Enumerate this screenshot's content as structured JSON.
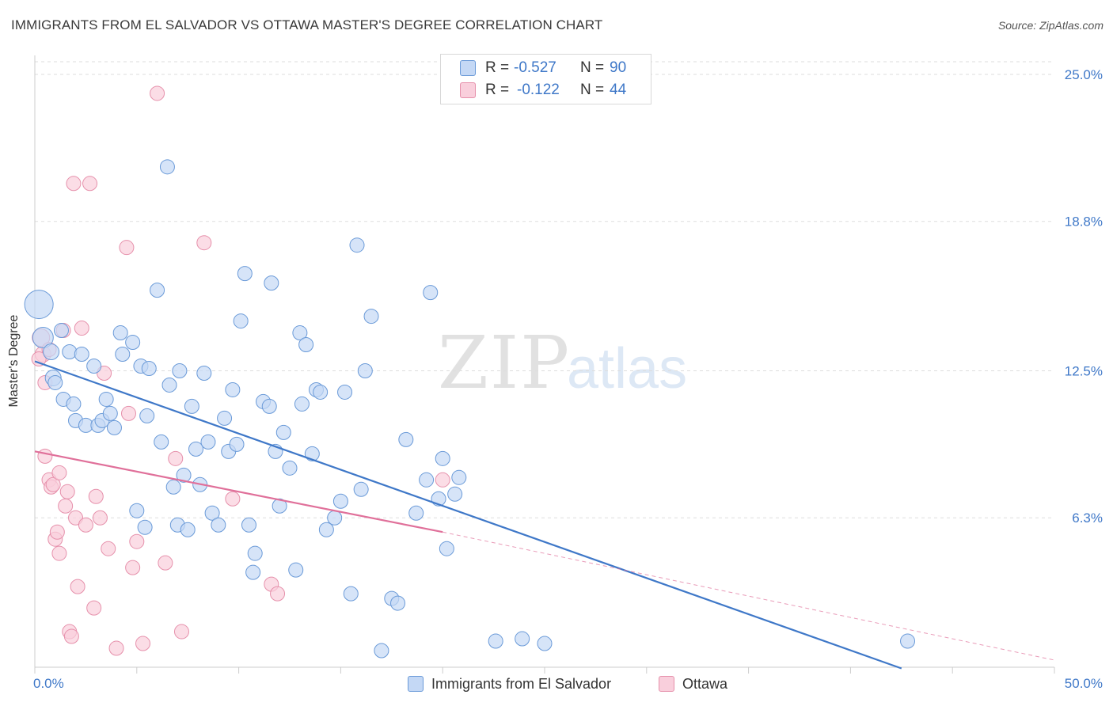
{
  "title": "IMMIGRANTS FROM EL SALVADOR VS OTTAWA MASTER'S DEGREE CORRELATION CHART",
  "source": "Source: ZipAtlas.com",
  "watermark": {
    "zip": "ZIP",
    "atlas": "atlas"
  },
  "legend": {
    "rows": [
      {
        "r_label": "R =",
        "r_value": "-0.527",
        "n_label": "N =",
        "n_value": "90"
      },
      {
        "r_label": "R =",
        "r_value": "-0.122",
        "n_label": "N =",
        "n_value": "44"
      }
    ]
  },
  "bottom_legend": [
    "Immigrants from El Salvador",
    "Ottawa"
  ],
  "colors": {
    "blue": "#3f78c8",
    "blue_fill": "#c4d8f5",
    "pink": "#e0709a",
    "pink_fill": "#f9cfdc",
    "grid": "#dddddd",
    "tick_label": "#3f78c8"
  },
  "chart_data": {
    "type": "scatter",
    "title": "IMMIGRANTS FROM EL SALVADOR VS OTTAWA MASTER'S DEGREE CORRELATION CHART",
    "xlabel": "",
    "ylabel": "Master's Degree",
    "xlim": [
      0,
      50
    ],
    "ylim": [
      0,
      25.8
    ],
    "x_tick_labels": [
      "0.0%",
      "50.0%"
    ],
    "y_ticks": [
      6.3,
      12.5,
      18.8,
      25.0
    ],
    "y_tick_labels": [
      "6.3%",
      "12.5%",
      "18.8%",
      "25.0%"
    ],
    "grid": true,
    "legend_position": "top-center",
    "series": [
      {
        "name": "Immigrants from El Salvador",
        "color": "#3f78c8",
        "trend": {
          "x": [
            0.0,
            42.5
          ],
          "y": [
            12.9,
            -0.05
          ],
          "dashed_to": null
        },
        "points": [
          [
            0.2,
            15.3,
            18
          ],
          [
            0.4,
            13.9,
            13
          ],
          [
            0.8,
            13.3,
            10
          ],
          [
            0.9,
            12.2,
            10
          ],
          [
            1.0,
            12.0,
            9
          ],
          [
            1.3,
            14.2,
            9
          ],
          [
            1.4,
            11.3,
            9
          ],
          [
            1.7,
            13.3,
            9
          ],
          [
            1.9,
            11.1,
            9
          ],
          [
            2.0,
            10.4,
            9
          ],
          [
            2.3,
            13.2,
            9
          ],
          [
            2.5,
            10.2,
            9
          ],
          [
            2.9,
            12.7,
            9
          ],
          [
            3.1,
            10.2,
            9
          ],
          [
            3.3,
            10.4,
            9
          ],
          [
            3.5,
            11.3,
            9
          ],
          [
            3.7,
            10.7,
            9
          ],
          [
            3.9,
            10.1,
            9
          ],
          [
            4.2,
            14.1,
            9
          ],
          [
            4.3,
            13.2,
            9
          ],
          [
            4.8,
            13.7,
            9
          ],
          [
            5.2,
            12.7,
            9
          ],
          [
            5.5,
            10.6,
            9
          ],
          [
            5.6,
            12.6,
            9
          ],
          [
            5.0,
            6.6,
            9
          ],
          [
            5.4,
            5.9,
            9
          ],
          [
            6.0,
            15.9,
            9
          ],
          [
            6.2,
            9.5,
            9
          ],
          [
            6.5,
            21.1,
            9
          ],
          [
            6.6,
            11.9,
            9
          ],
          [
            6.8,
            7.6,
            9
          ],
          [
            7.0,
            6.0,
            9
          ],
          [
            7.1,
            12.5,
            9
          ],
          [
            7.3,
            8.1,
            9
          ],
          [
            7.5,
            5.8,
            9
          ],
          [
            7.7,
            11.0,
            9
          ],
          [
            7.9,
            9.2,
            9
          ],
          [
            8.1,
            7.7,
            9
          ],
          [
            8.3,
            12.4,
            9
          ],
          [
            8.5,
            9.5,
            9
          ],
          [
            8.7,
            6.5,
            9
          ],
          [
            9.0,
            6.0,
            9
          ],
          [
            9.3,
            10.5,
            9
          ],
          [
            9.5,
            9.1,
            9
          ],
          [
            9.7,
            11.7,
            9
          ],
          [
            9.9,
            9.4,
            9
          ],
          [
            10.1,
            14.6,
            9
          ],
          [
            10.3,
            16.6,
            9
          ],
          [
            10.5,
            6.0,
            9
          ],
          [
            10.8,
            4.8,
            9
          ],
          [
            10.7,
            4.0,
            9
          ],
          [
            11.2,
            11.2,
            9
          ],
          [
            11.5,
            11.0,
            9
          ],
          [
            11.6,
            16.2,
            9
          ],
          [
            11.8,
            9.1,
            9
          ],
          [
            12.0,
            6.8,
            9
          ],
          [
            12.2,
            9.9,
            9
          ],
          [
            12.5,
            8.4,
            9
          ],
          [
            12.8,
            4.1,
            9
          ],
          [
            13.0,
            14.1,
            9
          ],
          [
            13.1,
            11.1,
            9
          ],
          [
            13.3,
            13.6,
            9
          ],
          [
            13.6,
            9.0,
            9
          ],
          [
            13.8,
            11.7,
            9
          ],
          [
            14.0,
            11.6,
            9
          ],
          [
            14.3,
            5.8,
            9
          ],
          [
            14.7,
            6.3,
            9
          ],
          [
            15.0,
            7.0,
            9
          ],
          [
            15.2,
            11.6,
            9
          ],
          [
            15.5,
            3.1,
            9
          ],
          [
            15.8,
            17.8,
            9
          ],
          [
            16.0,
            7.5,
            9
          ],
          [
            16.2,
            12.5,
            9
          ],
          [
            16.5,
            14.8,
            9
          ],
          [
            17.0,
            0.7,
            9
          ],
          [
            17.5,
            2.9,
            9
          ],
          [
            17.8,
            2.7,
            9
          ],
          [
            18.2,
            9.6,
            9
          ],
          [
            18.7,
            6.5,
            9
          ],
          [
            19.2,
            7.9,
            9
          ],
          [
            19.4,
            15.8,
            9
          ],
          [
            19.8,
            7.1,
            9
          ],
          [
            20.0,
            8.8,
            9
          ],
          [
            20.2,
            5.0,
            9
          ],
          [
            20.6,
            7.3,
            9
          ],
          [
            20.8,
            8.0,
            9
          ],
          [
            22.6,
            1.1,
            9
          ],
          [
            23.9,
            1.2,
            9
          ],
          [
            25.0,
            1.0,
            9
          ],
          [
            42.8,
            1.1,
            9
          ]
        ]
      },
      {
        "name": "Ottawa",
        "color": "#e0709a",
        "trend": {
          "x": [
            0.0,
            20.0
          ],
          "y": [
            9.1,
            5.7
          ],
          "dashed_to": [
            50.0,
            0.3
          ]
        },
        "points": [
          [
            0.3,
            13.9,
            11
          ],
          [
            0.4,
            13.2,
            10
          ],
          [
            0.5,
            12.0,
            9
          ],
          [
            0.5,
            8.9,
            9
          ],
          [
            0.7,
            13.4,
            9
          ],
          [
            0.7,
            7.9,
            9
          ],
          [
            0.8,
            7.6,
            9
          ],
          [
            0.9,
            7.7,
            9
          ],
          [
            1.0,
            5.4,
            9
          ],
          [
            1.1,
            5.7,
            9
          ],
          [
            1.2,
            4.8,
            9
          ],
          [
            1.2,
            8.2,
            9
          ],
          [
            1.4,
            14.2,
            9
          ],
          [
            1.5,
            6.8,
            9
          ],
          [
            1.6,
            7.4,
            9
          ],
          [
            1.7,
            1.5,
            9
          ],
          [
            1.8,
            1.3,
            9
          ],
          [
            1.9,
            20.4,
            9
          ],
          [
            2.0,
            6.3,
            9
          ],
          [
            2.1,
            3.4,
            9
          ],
          [
            2.3,
            14.3,
            9
          ],
          [
            2.5,
            6.0,
            9
          ],
          [
            2.7,
            20.4,
            9
          ],
          [
            2.9,
            2.5,
            9
          ],
          [
            3.0,
            7.2,
            9
          ],
          [
            3.2,
            6.3,
            9
          ],
          [
            3.4,
            12.4,
            9
          ],
          [
            3.6,
            5.0,
            9
          ],
          [
            4.0,
            0.8,
            9
          ],
          [
            4.5,
            17.7,
            9
          ],
          [
            4.6,
            10.7,
            9
          ],
          [
            4.8,
            4.2,
            9
          ],
          [
            5.0,
            5.3,
            9
          ],
          [
            5.3,
            1.0,
            9
          ],
          [
            6.0,
            24.2,
            9
          ],
          [
            6.4,
            4.4,
            9
          ],
          [
            6.9,
            8.8,
            9
          ],
          [
            7.2,
            1.5,
            9
          ],
          [
            8.3,
            17.9,
            9
          ],
          [
            9.7,
            7.1,
            9
          ],
          [
            11.6,
            3.5,
            9
          ],
          [
            11.9,
            3.1,
            9
          ],
          [
            20.0,
            7.9,
            9
          ],
          [
            0.2,
            13.0,
            9
          ]
        ]
      }
    ]
  }
}
